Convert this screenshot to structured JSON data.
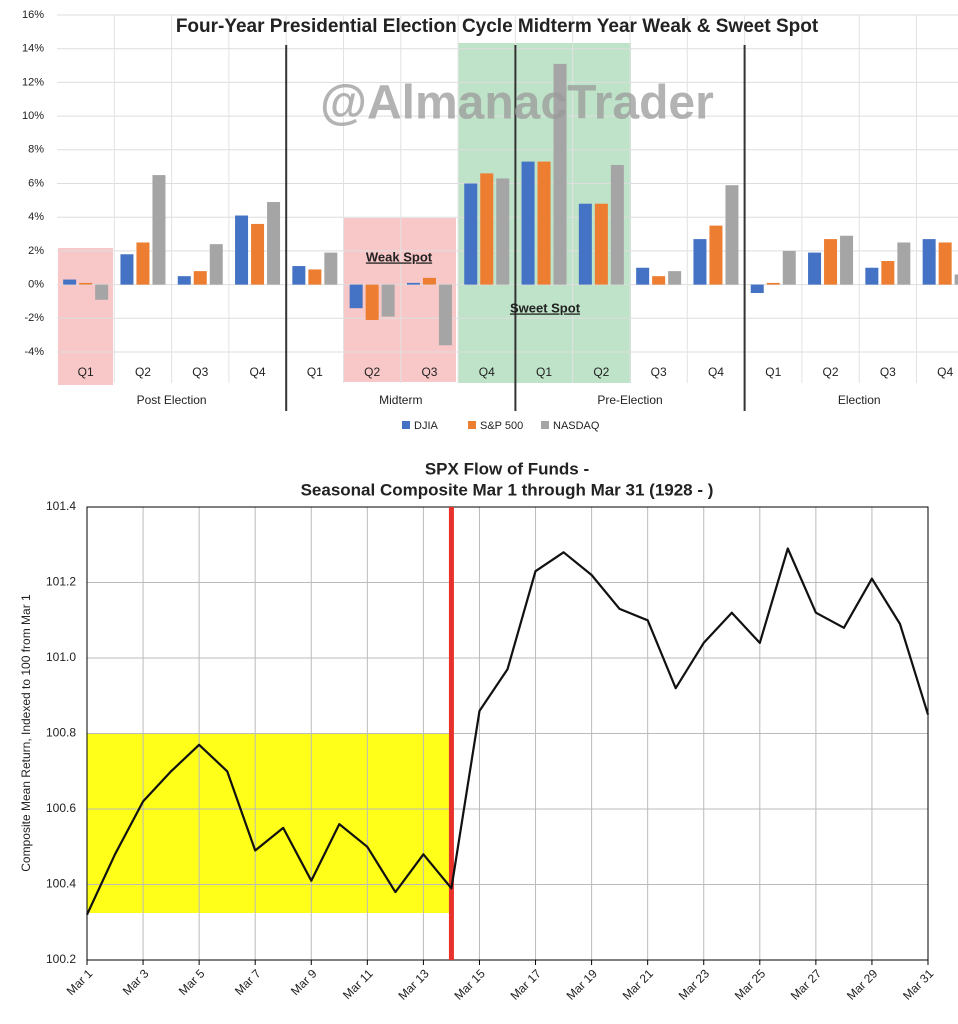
{
  "chart_data": [
    {
      "type": "bar",
      "title": "Four-Year Presidential Election Cycle Midterm Year Weak & Sweet Spot",
      "annotations": [
        "@AlmanacTrader",
        "Weak Spot",
        "Sweet Spot"
      ],
      "categories": [
        "Q1",
        "Q2",
        "Q3",
        "Q4",
        "Q1",
        "Q2",
        "Q3",
        "Q4",
        "Q1",
        "Q2",
        "Q3",
        "Q4",
        "Q1",
        "Q2",
        "Q3",
        "Q4"
      ],
      "groups": [
        "Post Election",
        "Midterm",
        "Pre-Election",
        "Election"
      ],
      "series": [
        {
          "name": "DJIA",
          "color": "#4472c4",
          "values": [
            0.3,
            1.8,
            0.5,
            4.1,
            1.1,
            -1.4,
            0.1,
            6.0,
            7.3,
            4.8,
            1.0,
            2.7,
            -0.5,
            1.9,
            1.0,
            2.7
          ]
        },
        {
          "name": "S&P 500",
          "color": "#ed7d31",
          "values": [
            0.1,
            2.5,
            0.8,
            3.6,
            0.9,
            -2.1,
            0.4,
            6.6,
            7.3,
            4.8,
            0.5,
            3.5,
            0.1,
            2.7,
            1.4,
            2.5
          ]
        },
        {
          "name": "NASDAQ",
          "color": "#a5a5a5",
          "values": [
            -0.9,
            6.5,
            2.4,
            4.9,
            1.9,
            -1.9,
            -3.6,
            6.3,
            13.1,
            7.1,
            0.8,
            5.9,
            2.0,
            2.9,
            2.5,
            0.6
          ]
        }
      ],
      "ylim": [
        -4,
        16
      ],
      "yticks": [
        {
          "value": -4,
          "label": "-4%"
        },
        {
          "value": -2,
          "label": "-2%"
        },
        {
          "value": 0,
          "label": "0%"
        },
        {
          "value": 2,
          "label": "2%"
        },
        {
          "value": 4,
          "label": "4%"
        },
        {
          "value": 6,
          "label": "6%"
        },
        {
          "value": 8,
          "label": "8%"
        },
        {
          "value": 10,
          "label": "10%"
        },
        {
          "value": 12,
          "label": "12%"
        },
        {
          "value": 14,
          "label": "14%"
        },
        {
          "value": 16,
          "label": "16%"
        }
      ],
      "grid": true,
      "legend": "bottom"
    },
    {
      "type": "line",
      "title": [
        "SPX Flow of Funds -",
        "Seasonal Composite Mar 1 through Mar 31 (1928 - )"
      ],
      "ylabel": "Composite Mean Return, Indexed to 100 from Mar 1",
      "categories": [
        "Mar 1",
        null,
        "Mar 3",
        null,
        "Mar 5",
        null,
        "Mar 7",
        null,
        "Mar 9",
        null,
        "Mar 11",
        null,
        "Mar 13",
        null,
        "Mar 15",
        null,
        "Mar 17",
        null,
        "Mar 19",
        null,
        "Mar 21",
        null,
        "Mar 23",
        null,
        "Mar 25",
        null,
        "Mar 27",
        null,
        "Mar 29",
        null,
        "Mar 31"
      ],
      "values": [
        100.32,
        100.48,
        100.62,
        100.7,
        100.77,
        100.7,
        100.49,
        100.55,
        100.41,
        100.56,
        100.5,
        100.38,
        100.48,
        100.39,
        100.86,
        100.97,
        101.23,
        101.28,
        101.22,
        101.13,
        101.1,
        100.92,
        101.04,
        101.12,
        101.04,
        101.29,
        101.12,
        101.08,
        101.21,
        101.09,
        100.85
      ],
      "color": "#111111",
      "ylim": [
        100.2,
        101.4
      ],
      "yticks": [
        100.2,
        100.4,
        100.6,
        100.8,
        {
          "value": 101,
          "label": "101.0"
        },
        101.2,
        101.4
      ],
      "grid": true
    }
  ]
}
